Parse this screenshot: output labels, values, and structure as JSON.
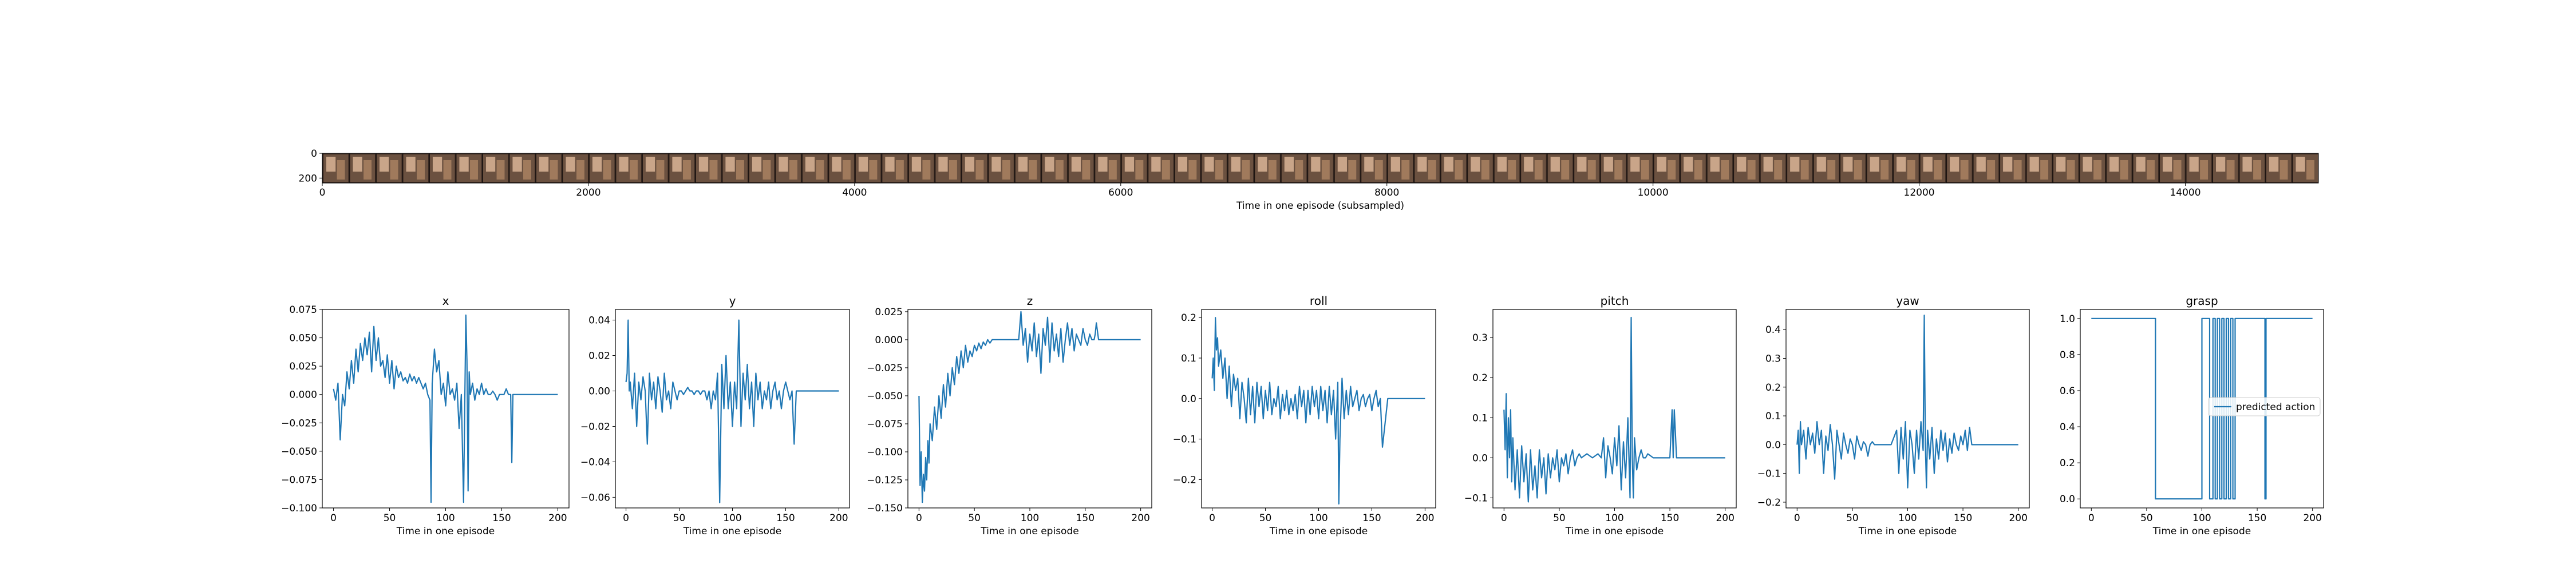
{
  "filmstrip": {
    "xlabel": "Time in one episode (subsampled)",
    "xticks": [
      0,
      2000,
      4000,
      6000,
      8000,
      10000,
      12000,
      14000
    ],
    "yticks": [
      0,
      200
    ],
    "xlim": [
      0,
      15000
    ],
    "ylim": [
      0,
      240
    ],
    "frame_count": 75
  },
  "series_color": "#1f77b4",
  "legend_label": "predicted action",
  "chart_data": [
    {
      "type": "line",
      "title": "x",
      "xlabel": "Time in one episode",
      "xlim": [
        -10,
        210
      ],
      "ylim": [
        -0.1,
        0.075
      ],
      "xticks": [
        0,
        50,
        100,
        150,
        200
      ],
      "yticks": [
        -0.1,
        -0.075,
        -0.05,
        -0.025,
        0.0,
        0.025,
        0.05,
        0.075
      ],
      "ytick_labels": [
        "−0.100",
        "−0.075",
        "−0.050",
        "−0.025",
        "0.000",
        "0.025",
        "0.050",
        "0.075"
      ],
      "x": [
        0,
        2,
        4,
        6,
        8,
        10,
        12,
        14,
        16,
        18,
        20,
        22,
        24,
        26,
        28,
        30,
        32,
        34,
        36,
        38,
        40,
        42,
        44,
        46,
        48,
        50,
        52,
        54,
        56,
        58,
        60,
        62,
        64,
        66,
        68,
        70,
        72,
        74,
        76,
        78,
        80,
        82,
        84,
        86,
        87,
        88,
        90,
        92,
        94,
        96,
        98,
        100,
        102,
        104,
        106,
        108,
        110,
        112,
        114,
        116,
        118,
        119,
        120,
        121,
        122,
        124,
        126,
        128,
        130,
        132,
        134,
        136,
        138,
        140,
        142,
        144,
        146,
        148,
        150,
        152,
        154,
        156,
        158,
        159,
        160,
        165,
        170,
        180,
        190,
        200
      ],
      "y": [
        0.005,
        -0.005,
        0.01,
        -0.04,
        0.0,
        -0.01,
        0.02,
        0.005,
        0.03,
        0.01,
        0.04,
        0.02,
        0.045,
        0.03,
        0.05,
        0.035,
        0.055,
        0.02,
        0.06,
        0.03,
        0.05,
        0.025,
        0.03,
        0.015,
        0.035,
        0.01,
        0.03,
        0.005,
        0.025,
        0.015,
        0.02,
        0.012,
        0.015,
        0.01,
        0.018,
        0.012,
        0.016,
        0.01,
        0.015,
        0.01,
        0.005,
        0.01,
        0.0,
        -0.005,
        -0.095,
        0.01,
        0.04,
        0.02,
        0.03,
        0.0,
        0.01,
        -0.01,
        0.02,
        0.0,
        0.005,
        -0.005,
        0.01,
        -0.03,
        0.0,
        -0.095,
        0.07,
        0.03,
        -0.085,
        0.02,
        0.0,
        0.01,
        -0.005,
        0.005,
        0.0,
        0.01,
        0.0,
        0.005,
        0.0,
        0.0,
        0.003,
        0.0,
        -0.005,
        0.0,
        0.0,
        0.0,
        0.005,
        0.0,
        0.0,
        -0.06,
        0.0,
        0.0,
        0.0,
        0.0,
        0.0,
        0.0
      ]
    },
    {
      "type": "line",
      "title": "y",
      "xlabel": "Time in one episode",
      "xlim": [
        -10,
        210
      ],
      "ylim": [
        -0.066,
        0.046
      ],
      "xticks": [
        0,
        50,
        100,
        150,
        200
      ],
      "yticks": [
        -0.06,
        -0.04,
        -0.02,
        0.0,
        0.02,
        0.04
      ],
      "ytick_labels": [
        "−0.06",
        "−0.04",
        "−0.02",
        "0.00",
        "0.02",
        "0.04"
      ],
      "x": [
        0,
        1,
        2,
        3,
        4,
        6,
        8,
        10,
        12,
        14,
        16,
        18,
        20,
        22,
        24,
        26,
        28,
        30,
        32,
        34,
        36,
        38,
        40,
        42,
        44,
        46,
        48,
        50,
        52,
        54,
        56,
        58,
        60,
        62,
        64,
        66,
        68,
        70,
        72,
        74,
        76,
        78,
        80,
        82,
        84,
        86,
        88,
        90,
        92,
        94,
        96,
        98,
        100,
        102,
        104,
        106,
        107,
        108,
        110,
        112,
        114,
        116,
        118,
        120,
        122,
        124,
        126,
        128,
        130,
        132,
        134,
        136,
        138,
        140,
        142,
        144,
        146,
        148,
        150,
        152,
        154,
        156,
        158,
        160,
        165,
        170,
        180,
        190,
        200
      ],
      "y": [
        0.005,
        0.01,
        0.04,
        0.0,
        0.005,
        -0.01,
        0.01,
        -0.02,
        0.005,
        -0.005,
        0.008,
        0.0,
        -0.03,
        0.01,
        -0.005,
        0.005,
        -0.01,
        0.008,
        0.0,
        -0.012,
        0.01,
        -0.005,
        0.0,
        -0.01,
        0.005,
        0.0,
        -0.005,
        0.0,
        0.0,
        -0.002,
        0.0,
        0.002,
        0.0,
        0.0,
        -0.002,
        0.0,
        0.0,
        -0.002,
        0.0,
        0.0,
        -0.005,
        0.0,
        -0.01,
        0.0,
        -0.005,
        0.01,
        -0.063,
        0.015,
        -0.01,
        0.02,
        -0.01,
        0.005,
        -0.02,
        0.005,
        -0.01,
        0.04,
        0.01,
        -0.02,
        0.01,
        -0.005,
        0.015,
        -0.01,
        0.005,
        -0.02,
        0.01,
        -0.005,
        0.005,
        -0.01,
        0.0,
        -0.005,
        0.005,
        -0.01,
        0.0,
        0.005,
        -0.005,
        0.0,
        -0.01,
        0.0,
        0.005,
        0.0,
        -0.005,
        0.0,
        -0.03,
        0.0,
        0.0,
        0.0,
        0.0,
        0.0,
        0.0
      ]
    },
    {
      "type": "line",
      "title": "z",
      "xlabel": "Time in one episode",
      "xlim": [
        -10,
        210
      ],
      "ylim": [
        -0.15,
        0.027
      ],
      "xticks": [
        0,
        50,
        100,
        150,
        200
      ],
      "yticks": [
        -0.15,
        -0.125,
        -0.1,
        -0.075,
        -0.05,
        -0.025,
        0.0,
        0.025
      ],
      "ytick_labels": [
        "−0.150",
        "−0.125",
        "−0.100",
        "−0.075",
        "−0.050",
        "−0.025",
        "0.000",
        "0.025"
      ],
      "x": [
        0,
        1,
        2,
        3,
        4,
        5,
        6,
        7,
        8,
        9,
        10,
        12,
        14,
        16,
        18,
        20,
        22,
        24,
        26,
        28,
        30,
        32,
        34,
        36,
        38,
        40,
        42,
        44,
        46,
        48,
        50,
        52,
        54,
        56,
        58,
        60,
        62,
        64,
        66,
        68,
        70,
        75,
        80,
        85,
        88,
        90,
        92,
        94,
        96,
        98,
        100,
        102,
        104,
        106,
        108,
        110,
        112,
        114,
        116,
        118,
        120,
        122,
        124,
        126,
        128,
        130,
        132,
        134,
        136,
        138,
        140,
        142,
        144,
        146,
        148,
        150,
        152,
        154,
        156,
        158,
        159,
        160,
        162,
        165,
        170,
        180,
        190,
        200
      ],
      "y": [
        -0.05,
        -0.13,
        -0.1,
        -0.145,
        -0.12,
        -0.135,
        -0.105,
        -0.125,
        -0.09,
        -0.11,
        -0.075,
        -0.09,
        -0.06,
        -0.08,
        -0.05,
        -0.07,
        -0.04,
        -0.06,
        -0.03,
        -0.05,
        -0.025,
        -0.04,
        -0.015,
        -0.03,
        -0.01,
        -0.025,
        -0.005,
        -0.02,
        -0.01,
        -0.015,
        -0.005,
        -0.01,
        -0.003,
        -0.008,
        -0.002,
        -0.005,
        0.0,
        -0.003,
        0.0,
        0.0,
        0.0,
        0.0,
        0.0,
        0.0,
        0.0,
        0.0,
        0.025,
        -0.005,
        0.01,
        -0.02,
        0.005,
        -0.01,
        0.015,
        -0.015,
        0.005,
        -0.03,
        0.01,
        -0.005,
        0.02,
        -0.02,
        0.015,
        -0.01,
        0.005,
        -0.015,
        0.01,
        -0.02,
        0.0,
        0.015,
        -0.005,
        0.01,
        -0.01,
        0.005,
        0.0,
        -0.005,
        0.01,
        0.0,
        -0.005,
        0.005,
        0.0,
        0.0,
        0.005,
        0.015,
        0.0,
        0.0,
        0.0,
        0.0,
        0.0,
        0.0
      ]
    },
    {
      "type": "line",
      "title": "roll",
      "xlabel": "Time in one episode",
      "xlim": [
        -10,
        210
      ],
      "ylim": [
        -0.27,
        0.22
      ],
      "xticks": [
        0,
        50,
        100,
        150,
        200
      ],
      "yticks": [
        -0.2,
        -0.1,
        0.0,
        0.1,
        0.2
      ],
      "ytick_labels": [
        "−0.2",
        "−0.1",
        "0.0",
        "0.1",
        "0.2"
      ],
      "x": [
        0,
        1,
        2,
        3,
        4,
        5,
        6,
        8,
        10,
        12,
        14,
        16,
        18,
        20,
        22,
        24,
        26,
        28,
        30,
        32,
        34,
        36,
        38,
        40,
        42,
        44,
        46,
        48,
        50,
        52,
        54,
        56,
        58,
        60,
        62,
        64,
        66,
        68,
        70,
        72,
        74,
        76,
        78,
        80,
        82,
        84,
        86,
        88,
        90,
        92,
        94,
        96,
        98,
        100,
        102,
        104,
        106,
        108,
        110,
        112,
        114,
        116,
        118,
        119,
        120,
        122,
        124,
        126,
        128,
        130,
        132,
        134,
        136,
        138,
        140,
        142,
        144,
        146,
        148,
        150,
        152,
        154,
        156,
        158,
        160,
        165,
        170,
        180,
        190,
        200
      ],
      "y": [
        0.05,
        0.1,
        0.02,
        0.2,
        0.12,
        0.15,
        0.08,
        0.12,
        0.05,
        0.1,
        0.0,
        0.08,
        -0.02,
        0.06,
        0.02,
        0.05,
        -0.05,
        0.04,
        0.0,
        -0.06,
        0.05,
        -0.04,
        0.03,
        -0.06,
        0.04,
        -0.02,
        0.03,
        -0.05,
        0.02,
        -0.03,
        0.04,
        -0.04,
        0.0,
        -0.02,
        0.03,
        -0.05,
        0.01,
        -0.03,
        0.02,
        -0.04,
        0.0,
        -0.03,
        0.01,
        -0.05,
        0.03,
        -0.02,
        0.02,
        -0.06,
        0.02,
        -0.04,
        0.03,
        -0.02,
        0.02,
        -0.05,
        0.03,
        -0.03,
        0.02,
        -0.06,
        0.03,
        -0.04,
        0.02,
        -0.1,
        0.04,
        -0.26,
        -0.1,
        0.05,
        -0.05,
        0.02,
        -0.04,
        0.03,
        -0.02,
        0.0,
        0.02,
        -0.03,
        0.0,
        0.01,
        -0.02,
        0.0,
        0.01,
        -0.03,
        0.0,
        0.02,
        -0.02,
        0.0,
        -0.12,
        0.0,
        0.0,
        0.0,
        0.0,
        0.0
      ]
    },
    {
      "type": "line",
      "title": "pitch",
      "xlabel": "Time in one episode",
      "xlim": [
        -10,
        210
      ],
      "ylim": [
        -0.125,
        0.37
      ],
      "xticks": [
        0,
        50,
        100,
        150,
        200
      ],
      "yticks": [
        -0.1,
        0.0,
        0.1,
        0.2,
        0.3
      ],
      "ytick_labels": [
        "−0.1",
        "0.0",
        "0.1",
        "0.2",
        "0.3"
      ],
      "x": [
        0,
        1,
        2,
        3,
        4,
        5,
        6,
        7,
        8,
        10,
        12,
        14,
        16,
        18,
        20,
        22,
        24,
        26,
        28,
        30,
        32,
        34,
        36,
        38,
        40,
        42,
        44,
        46,
        48,
        50,
        52,
        54,
        56,
        58,
        60,
        62,
        64,
        66,
        68,
        70,
        75,
        80,
        85,
        88,
        90,
        92,
        94,
        96,
        98,
        100,
        102,
        104,
        106,
        108,
        110,
        112,
        114,
        115,
        116,
        117,
        118,
        120,
        122,
        124,
        126,
        128,
        130,
        135,
        140,
        145,
        150,
        152,
        153,
        154,
        155,
        156,
        158,
        160,
        170,
        180,
        190,
        200
      ],
      "y": [
        0.12,
        0.02,
        0.16,
        -0.05,
        0.1,
        0.0,
        0.12,
        -0.06,
        0.05,
        -0.08,
        0.02,
        -0.1,
        0.03,
        -0.06,
        0.01,
        -0.11,
        0.02,
        -0.08,
        -0.02,
        -0.1,
        0.02,
        -0.05,
        0.0,
        -0.09,
        0.01,
        -0.05,
        0.0,
        -0.03,
        0.02,
        -0.06,
        0.0,
        -0.02,
        0.01,
        -0.04,
        0.0,
        0.02,
        -0.02,
        0.0,
        0.01,
        0.0,
        0.01,
        0.0,
        0.01,
        0.0,
        0.05,
        -0.05,
        0.03,
        0.0,
        -0.04,
        0.05,
        -0.02,
        0.08,
        -0.08,
        0.04,
        -0.05,
        0.1,
        -0.1,
        0.35,
        0.0,
        -0.1,
        0.05,
        -0.03,
        0.0,
        0.02,
        0.0,
        0.0,
        0.01,
        0.0,
        0.0,
        0.0,
        0.0,
        0.12,
        0.0,
        0.12,
        0.06,
        0.0,
        0.0,
        0.0,
        0.0,
        0.0,
        0.0,
        0.0
      ]
    },
    {
      "type": "line",
      "title": "yaw",
      "xlabel": "Time in one episode",
      "xlim": [
        -10,
        210
      ],
      "ylim": [
        -0.22,
        0.47
      ],
      "xticks": [
        0,
        50,
        100,
        150,
        200
      ],
      "yticks": [
        -0.2,
        -0.1,
        0.0,
        0.1,
        0.2,
        0.3,
        0.4
      ],
      "ytick_labels": [
        "−0.2",
        "−0.1",
        "0.0",
        "0.1",
        "0.2",
        "0.3",
        "0.4"
      ],
      "x": [
        0,
        1,
        2,
        3,
        4,
        6,
        8,
        10,
        12,
        14,
        16,
        18,
        20,
        22,
        24,
        26,
        28,
        30,
        32,
        34,
        36,
        38,
        40,
        42,
        44,
        46,
        48,
        50,
        52,
        54,
        56,
        58,
        60,
        62,
        64,
        66,
        68,
        70,
        75,
        80,
        85,
        90,
        92,
        94,
        96,
        98,
        100,
        102,
        104,
        106,
        108,
        110,
        112,
        114,
        115,
        116,
        117,
        118,
        120,
        122,
        124,
        126,
        128,
        130,
        132,
        134,
        136,
        138,
        140,
        142,
        144,
        146,
        148,
        150,
        152,
        154,
        156,
        158,
        160,
        170,
        180,
        190,
        200
      ],
      "y": [
        0.0,
        0.05,
        -0.1,
        0.08,
        0.0,
        0.05,
        -0.05,
        0.06,
        0.0,
        0.04,
        -0.03,
        0.08,
        0.0,
        0.05,
        -0.1,
        0.03,
        -0.02,
        0.07,
        0.0,
        -0.12,
        0.05,
        0.0,
        -0.05,
        0.04,
        0.0,
        -0.03,
        0.02,
        0.0,
        -0.05,
        0.03,
        0.0,
        -0.02,
        0.01,
        0.0,
        -0.04,
        0.0,
        0.01,
        0.0,
        0.0,
        0.0,
        0.0,
        0.05,
        -0.1,
        0.06,
        -0.05,
        0.08,
        -0.15,
        0.05,
        0.0,
        -0.1,
        0.05,
        -0.05,
        0.08,
        -0.02,
        0.45,
        0.0,
        -0.15,
        0.05,
        -0.05,
        0.06,
        -0.1,
        0.02,
        -0.05,
        0.05,
        -0.02,
        0.04,
        -0.06,
        0.02,
        -0.03,
        0.04,
        0.0,
        -0.02,
        0.03,
        0.0,
        0.05,
        -0.02,
        0.06,
        0.0,
        0.0,
        0.0,
        0.0,
        0.0,
        0.0
      ]
    },
    {
      "type": "line",
      "title": "grasp",
      "xlabel": "Time in one episode",
      "xlim": [
        -10,
        210
      ],
      "ylim": [
        -0.05,
        1.05
      ],
      "xticks": [
        0,
        50,
        100,
        150,
        200
      ],
      "yticks": [
        0.0,
        0.2,
        0.4,
        0.6,
        0.8,
        1.0
      ],
      "ytick_labels": [
        "0.0",
        "0.2",
        "0.4",
        "0.6",
        "0.8",
        "1.0"
      ],
      "legend": "right",
      "x": [
        0,
        58,
        58,
        100,
        100,
        107,
        107,
        110,
        110,
        112,
        112,
        114,
        114,
        116,
        116,
        118,
        118,
        120,
        120,
        122,
        122,
        124,
        124,
        126,
        126,
        128,
        128,
        130,
        130,
        157,
        157,
        158,
        158,
        200
      ],
      "y": [
        1.0,
        1.0,
        0.0,
        0.0,
        1.0,
        1.0,
        0.0,
        0.0,
        1.0,
        1.0,
        0.0,
        0.0,
        1.0,
        1.0,
        0.0,
        0.0,
        1.0,
        1.0,
        0.0,
        0.0,
        1.0,
        1.0,
        0.0,
        0.0,
        1.0,
        1.0,
        0.0,
        0.0,
        1.0,
        1.0,
        0.0,
        0.0,
        1.0,
        1.0
      ]
    }
  ]
}
